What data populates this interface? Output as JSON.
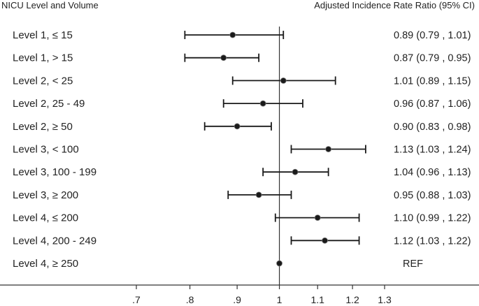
{
  "header": {
    "left_title": "NICU Level and Volume",
    "right_title": "Adjusted Incidence Rate Ratio (95% CI)"
  },
  "colors": {
    "ink": "#1a1a1a",
    "marker": "#1a1a1a",
    "axis": "#333333"
  },
  "chart_data": {
    "type": "forest",
    "xscale": "log",
    "xlim": [
      0.62,
      1.38
    ],
    "reference_line_x": 1.0,
    "x_ticks": [
      0.7,
      0.8,
      0.9,
      1.0,
      1.1,
      1.2,
      1.3
    ],
    "x_tick_labels": [
      ".7",
      ".8",
      ".9",
      "1",
      "1.1",
      "1.2",
      "1.3"
    ],
    "rows": [
      {
        "label": "Level 1, ≤ 15",
        "est": 0.89,
        "lo": 0.79,
        "hi": 1.01,
        "text": "0.89 (0.79 , 1.01)"
      },
      {
        "label": "Level 1, > 15",
        "est": 0.87,
        "lo": 0.79,
        "hi": 0.95,
        "text": "0.87 (0.79 , 0.95)"
      },
      {
        "label": "Level 2, < 25",
        "est": 1.01,
        "lo": 0.89,
        "hi": 1.15,
        "text": "1.01 (0.89 , 1.15)"
      },
      {
        "label": "Level 2, 25 - 49",
        "est": 0.96,
        "lo": 0.87,
        "hi": 1.06,
        "text": "0.96 (0.87 , 1.06)"
      },
      {
        "label": "Level 2, ≥ 50",
        "est": 0.9,
        "lo": 0.83,
        "hi": 0.98,
        "text": "0.90 (0.83 , 0.98)"
      },
      {
        "label": "Level 3, < 100",
        "est": 1.13,
        "lo": 1.03,
        "hi": 1.24,
        "text": "1.13 (1.03 , 1.24)"
      },
      {
        "label": "Level 3, 100 - 199",
        "est": 1.04,
        "lo": 0.96,
        "hi": 1.13,
        "text": "1.04 (0.96 , 1.13)"
      },
      {
        "label": "Level 3, ≥ 200",
        "est": 0.95,
        "lo": 0.88,
        "hi": 1.03,
        "text": "0.95 (0.88 , 1.03)"
      },
      {
        "label": "Level 4, ≤ 200",
        "est": 1.1,
        "lo": 0.99,
        "hi": 1.22,
        "text": "1.10 (0.99 , 1.22)"
      },
      {
        "label": "Level 4, 200 - 249",
        "est": 1.12,
        "lo": 1.03,
        "hi": 1.22,
        "text": "1.12 (1.03 , 1.22)"
      },
      {
        "label": "Level 4, ≥ 250",
        "est": 1.0,
        "lo": null,
        "hi": null,
        "text": "REF"
      }
    ]
  }
}
